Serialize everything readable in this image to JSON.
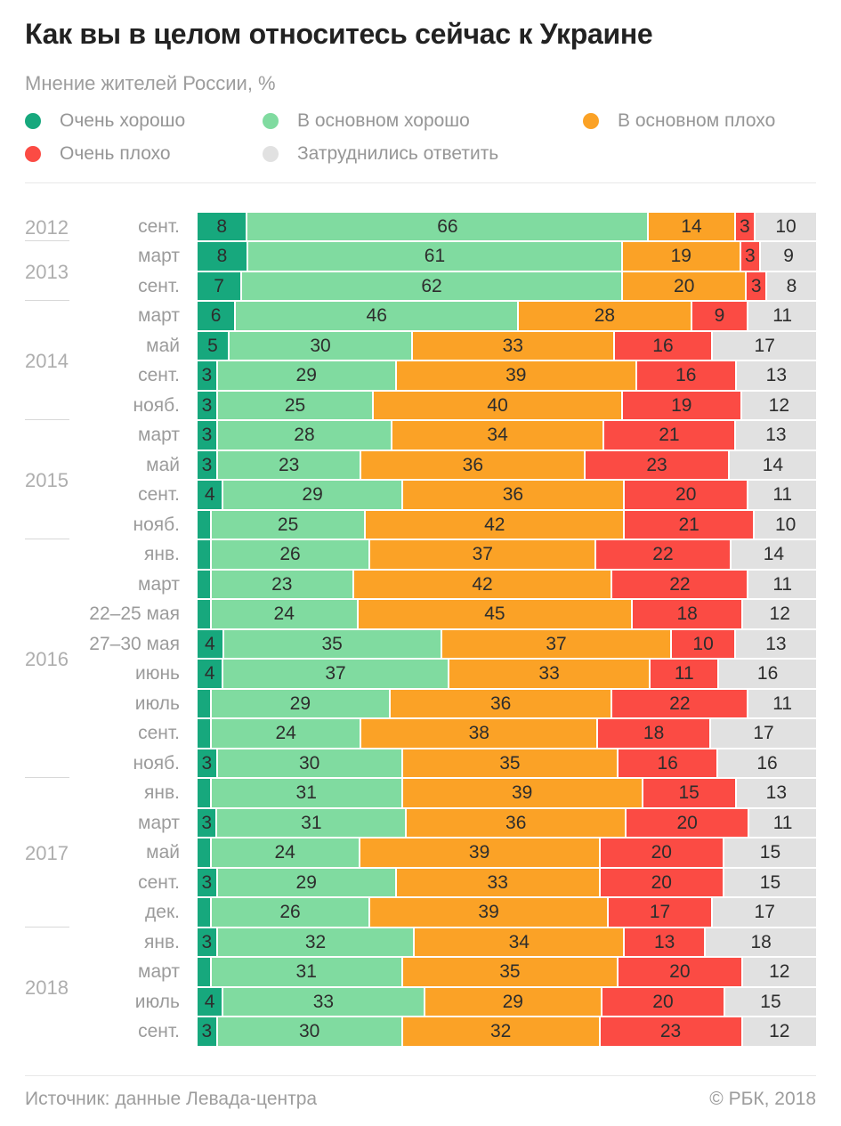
{
  "title": "Как вы в целом относитесь сейчас к Украине",
  "subtitle": "Мнение жителей России, %",
  "legend": {
    "items": [
      {
        "label": "Очень хорошо",
        "color": "#17A87D"
      },
      {
        "label": "В основном хорошо",
        "color": "#80DBA0"
      },
      {
        "label": "В основном плохо",
        "color": "#FBA226"
      },
      {
        "label": "Очень плохо",
        "color": "#FB4B44"
      },
      {
        "label": "Затруднились ответить",
        "color": "#E1E1E1"
      }
    ]
  },
  "footer": {
    "source": "Источник: данные Левада-центра",
    "copyright": "© РБК, 2018"
  },
  "chart_data": {
    "type": "bar",
    "stacked": true,
    "orientation": "horizontal",
    "unit": "%",
    "series": [
      "Очень хорошо",
      "В основном хорошо",
      "В основном плохо",
      "Очень плохо",
      "Затруднились ответить"
    ],
    "colors": [
      "#17A87D",
      "#80DBA0",
      "#FBA226",
      "#FB4B44",
      "#E1E1E1"
    ],
    "groups": [
      {
        "year": "2012",
        "rows": [
          {
            "month": "сент.",
            "values": [
              8,
              66,
              14,
              3,
              10
            ],
            "labels": [
              "8",
              "66",
              "14",
              "3",
              "10"
            ]
          }
        ]
      },
      {
        "year": "2013",
        "rows": [
          {
            "month": "март",
            "values": [
              8,
              61,
              19,
              3,
              9
            ],
            "labels": [
              "8",
              "61",
              "19",
              "3",
              "9"
            ]
          },
          {
            "month": "сент.",
            "values": [
              7,
              62,
              20,
              3,
              8
            ],
            "labels": [
              "7",
              "62",
              "20",
              "3",
              "8"
            ]
          }
        ]
      },
      {
        "year": "2014",
        "rows": [
          {
            "month": "март",
            "values": [
              6,
              46,
              28,
              9,
              11
            ],
            "labels": [
              "6",
              "46",
              "28",
              "9",
              "11"
            ]
          },
          {
            "month": "май",
            "values": [
              5,
              30,
              33,
              16,
              17
            ],
            "labels": [
              "5",
              "30",
              "33",
              "16",
              "17"
            ]
          },
          {
            "month": "сент.",
            "values": [
              3,
              29,
              39,
              16,
              13
            ],
            "labels": [
              "3",
              "29",
              "39",
              "16",
              "13"
            ]
          },
          {
            "month": "нояб.",
            "values": [
              3,
              25,
              40,
              19,
              12
            ],
            "labels": [
              "3",
              "25",
              "40",
              "19",
              "12"
            ]
          }
        ]
      },
      {
        "year": "2015",
        "rows": [
          {
            "month": "март",
            "values": [
              3,
              28,
              34,
              21,
              13
            ],
            "labels": [
              "3",
              "28",
              "34",
              "21",
              "13"
            ]
          },
          {
            "month": "май",
            "values": [
              3,
              23,
              36,
              23,
              14
            ],
            "labels": [
              "3",
              "23",
              "36",
              "23",
              "14"
            ]
          },
          {
            "month": "сент.",
            "values": [
              4,
              29,
              36,
              20,
              11
            ],
            "labels": [
              "4",
              "29",
              "36",
              "20",
              "11"
            ]
          },
          {
            "month": "нояб.",
            "values": [
              2,
              25,
              42,
              21,
              10
            ],
            "labels": [
              "",
              "25",
              "42",
              "21",
              "10"
            ]
          }
        ]
      },
      {
        "year": "2016",
        "rows": [
          {
            "month": "янв.",
            "values": [
              2,
              26,
              37,
              22,
              14
            ],
            "labels": [
              "",
              "26",
              "37",
              "22",
              "14"
            ]
          },
          {
            "month": "март",
            "values": [
              2,
              23,
              42,
              22,
              11
            ],
            "labels": [
              "",
              "23",
              "42",
              "22",
              "11"
            ]
          },
          {
            "month": "22–25 мая",
            "values": [
              2,
              24,
              45,
              18,
              12
            ],
            "labels": [
              "",
              "24",
              "45",
              "18",
              "12"
            ]
          },
          {
            "month": "27–30 мая",
            "values": [
              4,
              35,
              37,
              10,
              13
            ],
            "labels": [
              "4",
              "35",
              "37",
              "10",
              "13"
            ]
          },
          {
            "month": "июнь",
            "values": [
              4,
              37,
              33,
              11,
              16
            ],
            "labels": [
              "4",
              "37",
              "33",
              "11",
              "16"
            ]
          },
          {
            "month": "июль",
            "values": [
              2,
              29,
              36,
              22,
              11
            ],
            "labels": [
              "",
              "29",
              "36",
              "22",
              "11"
            ]
          },
          {
            "month": "сент.",
            "values": [
              2,
              24,
              38,
              18,
              17
            ],
            "labels": [
              "",
              "24",
              "38",
              "18",
              "17"
            ]
          },
          {
            "month": "нояб.",
            "values": [
              3,
              30,
              35,
              16,
              16
            ],
            "labels": [
              "3",
              "30",
              "35",
              "16",
              "16"
            ]
          }
        ]
      },
      {
        "year": "2017",
        "rows": [
          {
            "month": "янв.",
            "values": [
              2,
              31,
              39,
              15,
              13
            ],
            "labels": [
              "",
              "31",
              "39",
              "15",
              "13"
            ]
          },
          {
            "month": "март",
            "values": [
              3,
              31,
              36,
              20,
              11
            ],
            "labels": [
              "3",
              "31",
              "36",
              "20",
              "11"
            ]
          },
          {
            "month": "май",
            "values": [
              2,
              24,
              39,
              20,
              15
            ],
            "labels": [
              "",
              "24",
              "39",
              "20",
              "15"
            ]
          },
          {
            "month": "сент.",
            "values": [
              3,
              29,
              33,
              20,
              15
            ],
            "labels": [
              "3",
              "29",
              "33",
              "20",
              "15"
            ]
          },
          {
            "month": "дек.",
            "values": [
              2,
              26,
              39,
              17,
              17
            ],
            "labels": [
              "",
              "26",
              "39",
              "17",
              "17"
            ]
          }
        ]
      },
      {
        "year": "2018",
        "rows": [
          {
            "month": "янв.",
            "values": [
              3,
              32,
              34,
              13,
              18
            ],
            "labels": [
              "3",
              "32",
              "34",
              "13",
              "18"
            ]
          },
          {
            "month": "март",
            "values": [
              2,
              31,
              35,
              20,
              12
            ],
            "labels": [
              "",
              "31",
              "35",
              "20",
              "12"
            ]
          },
          {
            "month": "июль",
            "values": [
              4,
              33,
              29,
              20,
              15
            ],
            "labels": [
              "4",
              "33",
              "29",
              "20",
              "15"
            ]
          },
          {
            "month": "сент.",
            "values": [
              3,
              30,
              32,
              23,
              12
            ],
            "labels": [
              "3",
              "30",
              "32",
              "23",
              "12"
            ]
          }
        ]
      }
    ]
  }
}
